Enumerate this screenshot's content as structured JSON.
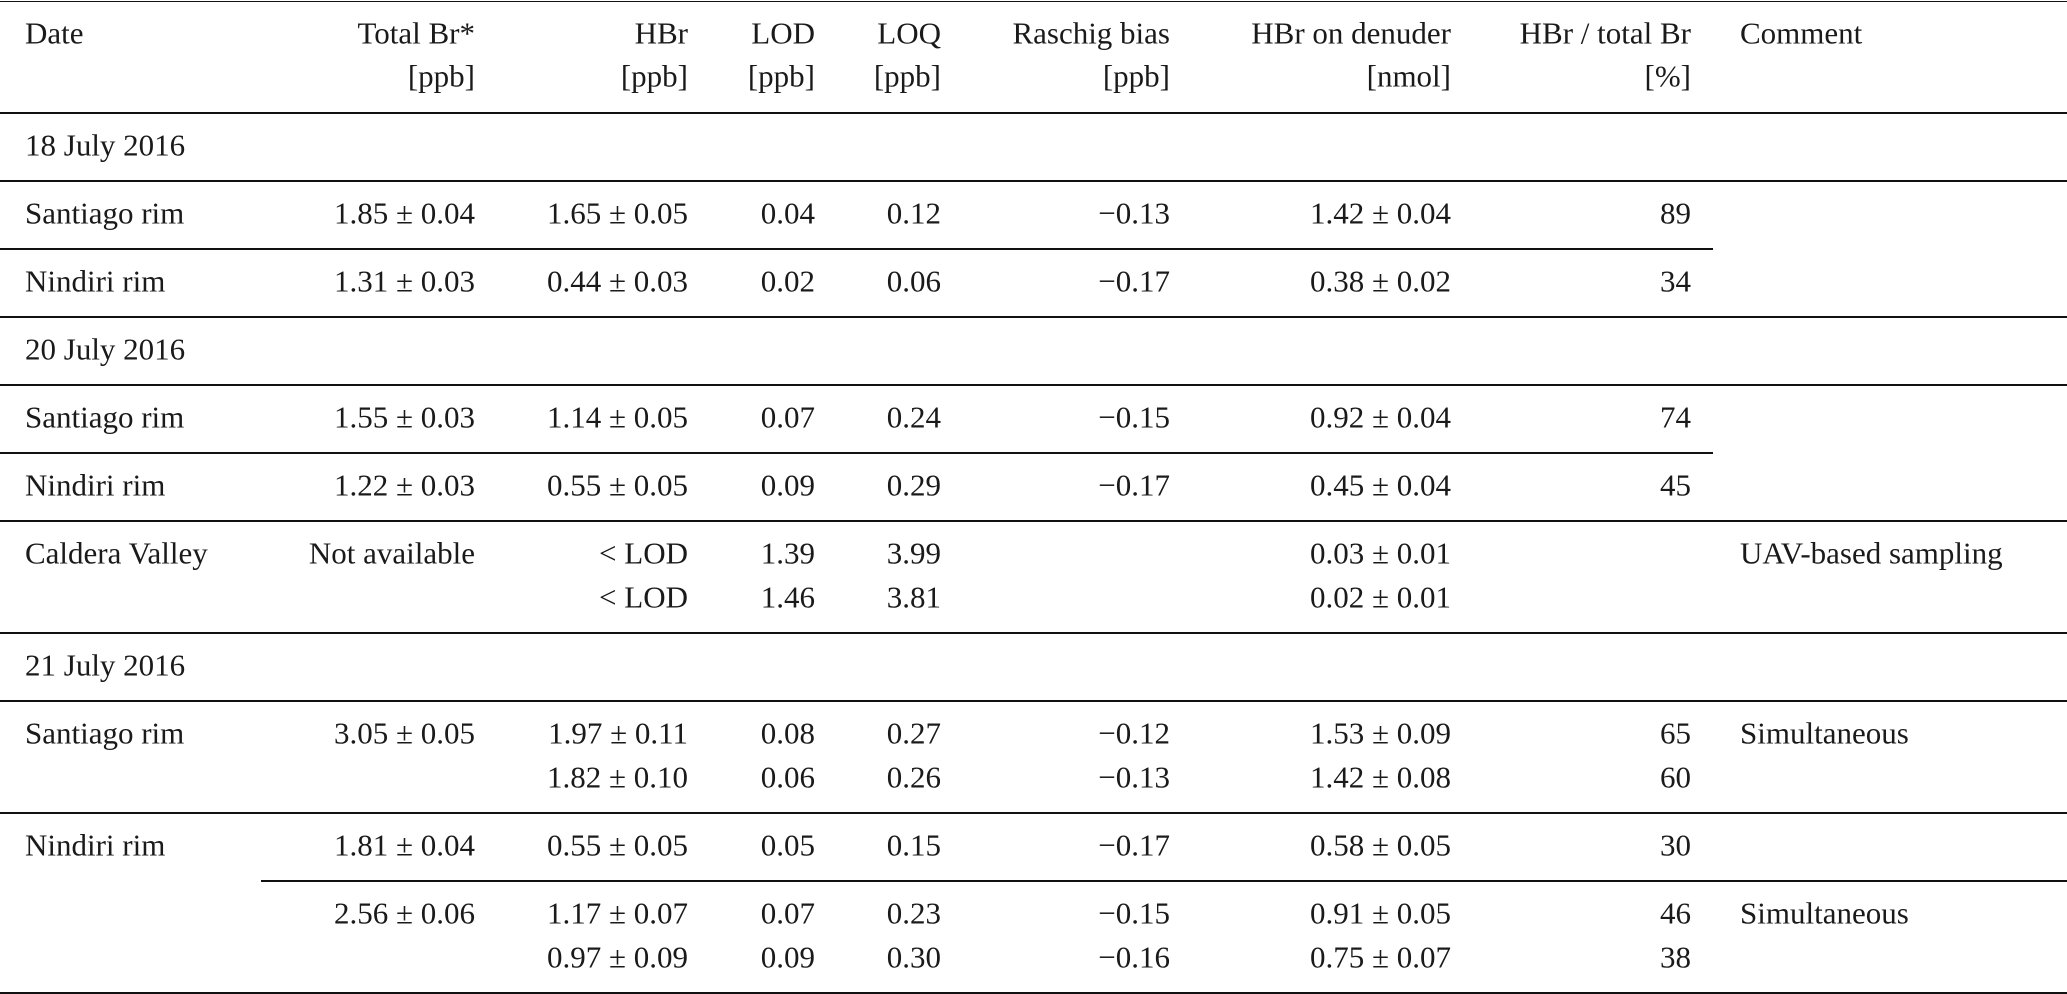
{
  "header": {
    "columns": [
      {
        "name": "Date"
      },
      {
        "name": "Total Br*",
        "unit": "[ppb]"
      },
      {
        "name": "HBr",
        "unit": "[ppb]"
      },
      {
        "name": "LOD",
        "unit": "[ppb]"
      },
      {
        "name": "LOQ",
        "unit": "[ppb]"
      },
      {
        "name": "Raschig bias",
        "unit": "[ppb]"
      },
      {
        "name": "HBr on denuder",
        "unit": "[nmol]"
      },
      {
        "name": "HBr / total Br",
        "unit": "[%]"
      },
      {
        "name": "Comment"
      }
    ]
  },
  "sections": [
    {
      "date": "18 July 2016",
      "rows": [
        {
          "site": "Santiago rim",
          "entries": [
            {
              "total_br": "1.85 ± 0.04",
              "lines": [
                {
                  "hbr": "1.65 ± 0.05",
                  "lod": "0.04",
                  "loq": "0.12",
                  "raschig_bias": "−0.13",
                  "hbr_on_denuder": "1.42 ± 0.04",
                  "hbr_ratio": "89"
                }
              ]
            }
          ]
        },
        {
          "site": "Nindiri rim",
          "entries": [
            {
              "total_br": "1.31 ± 0.03",
              "lines": [
                {
                  "hbr": "0.44 ± 0.03",
                  "lod": "0.02",
                  "loq": "0.06",
                  "raschig_bias": "−0.17",
                  "hbr_on_denuder": "0.38 ± 0.02",
                  "hbr_ratio": "34"
                }
              ]
            }
          ]
        }
      ]
    },
    {
      "date": "20 July 2016",
      "rows": [
        {
          "site": "Santiago rim",
          "entries": [
            {
              "total_br": "1.55 ± 0.03",
              "lines": [
                {
                  "hbr": "1.14 ± 0.05",
                  "lod": "0.07",
                  "loq": "0.24",
                  "raschig_bias": "−0.15",
                  "hbr_on_denuder": "0.92 ± 0.04",
                  "hbr_ratio": "74"
                }
              ]
            }
          ]
        },
        {
          "site": "Nindiri rim",
          "entries": [
            {
              "total_br": "1.22 ± 0.03",
              "lines": [
                {
                  "hbr": "0.55 ± 0.05",
                  "lod": "0.09",
                  "loq": "0.29",
                  "raschig_bias": "−0.17",
                  "hbr_on_denuder": "0.45 ± 0.04",
                  "hbr_ratio": "45"
                }
              ]
            }
          ]
        },
        {
          "site": "Caldera Valley",
          "entries": [
            {
              "total_br": "Not available",
              "comment": "UAV-based sampling",
              "lines": [
                {
                  "hbr": "< LOD",
                  "lod": "1.39",
                  "loq": "3.99",
                  "hbr_on_denuder": "0.03 ± 0.01"
                },
                {
                  "hbr": "< LOD",
                  "lod": "1.46",
                  "loq": "3.81",
                  "hbr_on_denuder": "0.02 ± 0.01"
                }
              ]
            }
          ]
        }
      ]
    },
    {
      "date": "21 July 2016",
      "rows": [
        {
          "site": "Santiago rim",
          "entries": [
            {
              "total_br": "3.05 ± 0.05",
              "comment": "Simultaneous",
              "lines": [
                {
                  "hbr": "1.97 ± 0.11",
                  "lod": "0.08",
                  "loq": "0.27",
                  "raschig_bias": "−0.12",
                  "hbr_on_denuder": "1.53 ± 0.09",
                  "hbr_ratio": "65"
                },
                {
                  "hbr": "1.82 ± 0.10",
                  "lod": "0.06",
                  "loq": "0.26",
                  "raschig_bias": "−0.13",
                  "hbr_on_denuder": "1.42 ± 0.08",
                  "hbr_ratio": "60"
                }
              ]
            }
          ]
        },
        {
          "site": "Nindiri rim",
          "entries": [
            {
              "total_br": "1.81 ± 0.04",
              "lines": [
                {
                  "hbr": "0.55 ± 0.05",
                  "lod": "0.05",
                  "loq": "0.15",
                  "raschig_bias": "−0.17",
                  "hbr_on_denuder": "0.58 ± 0.05",
                  "hbr_ratio": "30"
                }
              ]
            },
            {
              "total_br": "2.56 ± 0.06",
              "comment": "Simultaneous",
              "lines": [
                {
                  "hbr": "1.17 ± 0.07",
                  "lod": "0.07",
                  "loq": "0.23",
                  "raschig_bias": "−0.15",
                  "hbr_on_denuder": "0.91 ± 0.05",
                  "hbr_ratio": "46"
                },
                {
                  "hbr": "0.97 ± 0.09",
                  "lod": "0.09",
                  "loq": "0.30",
                  "raschig_bias": "−0.16",
                  "hbr_on_denuder": "0.75 ± 0.07",
                  "hbr_ratio": "38"
                }
              ]
            }
          ]
        }
      ]
    }
  ]
}
